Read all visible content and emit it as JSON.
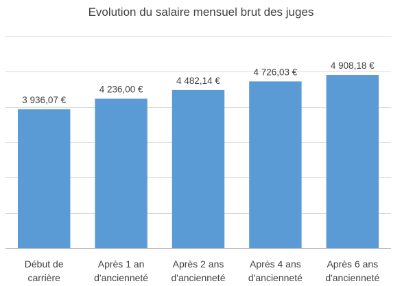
{
  "chart_data": {
    "type": "bar",
    "title": "Evolution du salaire mensuel brut des juges",
    "xlabel": "",
    "ylabel": "",
    "categories": [
      [
        "Début de",
        "carrière"
      ],
      [
        "Après 1 an",
        "d'ancienneté"
      ],
      [
        "Après 2 ans",
        "d'ancienneté"
      ],
      [
        "Après 4 ans",
        "d'ancienneté"
      ],
      [
        "Après 6 ans",
        "d'ancienneté"
      ]
    ],
    "values": [
      3936.07,
      4236.0,
      4482.14,
      4726.03,
      4908.18
    ],
    "data_labels": [
      "3 936,07 €",
      "4 236,00 €",
      "4 482,14 €",
      "4 726,03 €",
      "4 908,18 €"
    ],
    "ylim": [
      0,
      6000
    ],
    "gridlines": [
      0,
      1000,
      2000,
      3000,
      4000,
      5000,
      6000
    ],
    "grid": true,
    "y_tick_labels_shown": false,
    "legend": "none",
    "bar_color": "#5B9BD5",
    "grid_color": "#D9D9D9",
    "text_color": "#404040"
  }
}
